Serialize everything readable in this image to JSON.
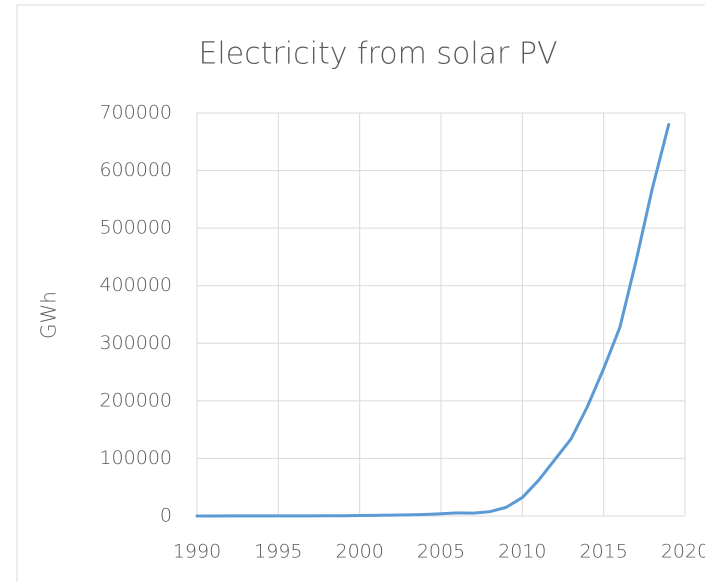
{
  "chart_data": {
    "type": "line",
    "title": "Electricity from solar PV",
    "y_label": "GWh",
    "x": [
      1990,
      1991,
      1992,
      1993,
      1994,
      1995,
      1996,
      1997,
      1998,
      1999,
      2000,
      2001,
      2002,
      2003,
      2004,
      2005,
      2006,
      2007,
      2008,
      2009,
      2010,
      2011,
      2012,
      2013,
      2014,
      2015,
      2016,
      2017,
      2018,
      2019
    ],
    "series": [
      {
        "name": "Electricity from solar PV",
        "color": "#5b9bd5",
        "values": [
          90,
          100,
          120,
          140,
          170,
          200,
          240,
          300,
          360,
          500,
          800,
          1100,
          1500,
          1900,
          2700,
          4000,
          5500,
          5000,
          7500,
          15000,
          32000,
          62000,
          98000,
          134000,
          190000,
          256000,
          328000,
          444000,
          570000,
          680000
        ]
      }
    ],
    "xlim": [
      1990,
      2020
    ],
    "xticks": [
      1990,
      1995,
      2000,
      2005,
      2010,
      2015,
      2020
    ],
    "ylim": [
      0,
      700000
    ],
    "yticks": [
      0,
      100000,
      200000,
      300000,
      400000,
      500000,
      600000,
      700000
    ],
    "grid": true
  }
}
